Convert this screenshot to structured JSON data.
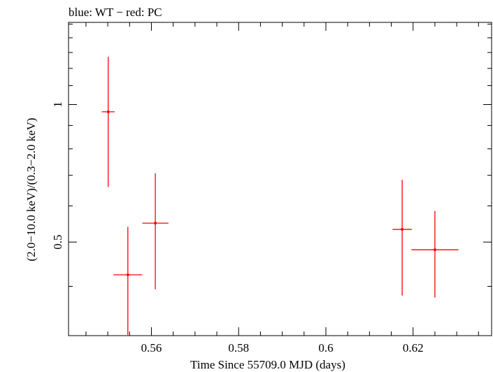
{
  "chart_data": {
    "type": "scatter",
    "title": "blue: WT − red: PC",
    "xlabel": "Time Since 55709.0 MJD (days)",
    "ylabel": "(2.0−10.0 keV)/(0.3−2.0 keV)",
    "xlim": [
      0.541,
      0.638
    ],
    "ylim": [
      0.312,
      1.513
    ],
    "y_scale": "log",
    "grid": false,
    "x_ticks": [
      {
        "value": 0.56,
        "label": "0.56"
      },
      {
        "value": 0.58,
        "label": "0.58"
      },
      {
        "value": 0.6,
        "label": "0.6"
      },
      {
        "value": 0.62,
        "label": "0.62"
      }
    ],
    "y_ticks": [
      {
        "value": 0.5,
        "label": "0.5"
      },
      {
        "value": 1.0,
        "label": "1"
      }
    ],
    "series": [
      {
        "color": "#ff0000",
        "points": [
          {
            "x": 0.5501,
            "xerr": 0.0015,
            "y": 0.964,
            "ylo": 0.66,
            "yhi": 1.272
          },
          {
            "x": 0.5546,
            "xerr": 0.0033,
            "y": 0.424,
            "ylo": 0.313,
            "yhi": 0.54
          },
          {
            "x": 0.5609,
            "xerr": 0.003,
            "y": 0.55,
            "ylo": 0.394,
            "yhi": 0.707
          },
          {
            "x": 0.6175,
            "xerr": 0.0022,
            "y": 0.533,
            "ylo": 0.382,
            "yhi": 0.684
          },
          {
            "x": 0.625,
            "xerr": 0.0054,
            "y": 0.481,
            "ylo": 0.378,
            "yhi": 0.585
          }
        ]
      }
    ]
  }
}
